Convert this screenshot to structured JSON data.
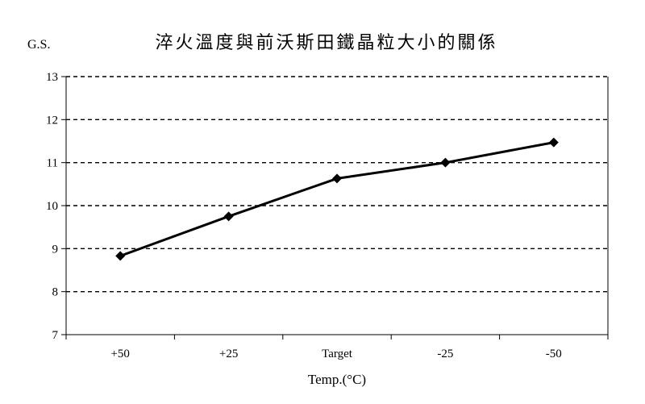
{
  "chart_data": {
    "type": "line",
    "title": "淬火溫度與前沃斯田鐵晶粒大小的關係",
    "ylabel": "G.S.",
    "xlabel": "Temp.(°C)",
    "categories": [
      "+50",
      "+25",
      "Target",
      "-25",
      "-50"
    ],
    "series": [
      {
        "values": [
          8.83,
          9.75,
          10.63,
          11.0,
          11.47
        ],
        "color": "#000000",
        "marker": "diamond"
      }
    ],
    "ylim": [
      7,
      13
    ],
    "yticks": [
      7,
      8,
      9,
      10,
      11,
      12,
      13
    ],
    "grid": "horizontal-dashed",
    "legend": "none"
  }
}
